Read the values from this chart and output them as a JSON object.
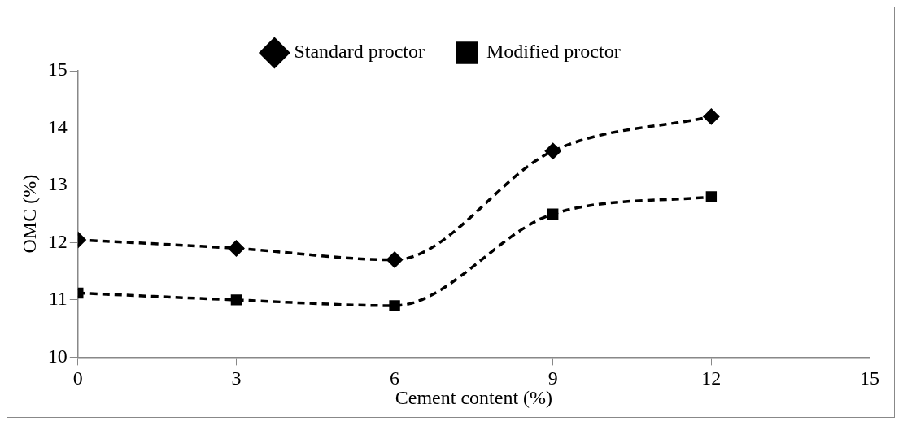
{
  "chart_data": {
    "type": "line",
    "xlabel": "Cement content (%)",
    "ylabel": "OMC (%)",
    "x": [
      0,
      3,
      6,
      9,
      12
    ],
    "series": [
      {
        "name": "Standard proctor",
        "color": "#000000",
        "marker": "diamond",
        "line_style": "dashed",
        "values": [
          12.05,
          11.9,
          11.7,
          13.6,
          14.2
        ]
      },
      {
        "name": "Modified proctor",
        "color": "#000000",
        "marker": "square",
        "line_style": "dashed",
        "values": [
          11.12,
          11.0,
          10.9,
          12.5,
          12.8
        ]
      }
    ],
    "xlim": [
      0,
      15
    ],
    "xticks": [
      0,
      3,
      6,
      9,
      12,
      15
    ],
    "ylim": [
      10,
      15
    ],
    "yticks": [
      10,
      11,
      12,
      13,
      14,
      15
    ],
    "grid": false,
    "legend": "top"
  }
}
